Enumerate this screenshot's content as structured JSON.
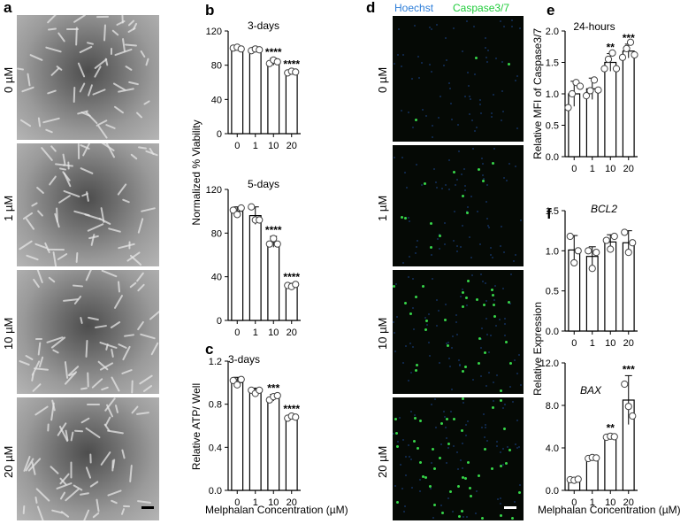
{
  "panels": {
    "a": {
      "letter": "a",
      "rows": [
        "0 µM",
        "1 µM",
        "10 µM",
        "20 µM"
      ]
    },
    "d": {
      "letter": "d",
      "channel1": "Hoechst",
      "channel2": "Caspase3/7",
      "rows": [
        "0 µM",
        "1 µM",
        "10 µM",
        "20 µM"
      ]
    }
  },
  "colors": {
    "hoechst": "#2f7fd9",
    "caspase": "#1fcc3a",
    "bar_fill": "#ffffff",
    "ink": "#000000"
  },
  "bottom_axis": {
    "left": "Melphalan  Concentration  (µM)",
    "right": "Melphalan  Concentration  (µM)"
  },
  "chart_data": [
    {
      "id": "b-top",
      "letter": "b",
      "type": "bar",
      "title": "3-days",
      "categories": [
        "0",
        "1",
        "10",
        "20"
      ],
      "values": [
        100,
        98,
        84,
        72
      ],
      "errors": [
        2,
        3,
        4,
        2
      ],
      "points": [
        [
          100,
          101,
          99
        ],
        [
          97,
          99,
          98
        ],
        [
          82,
          86,
          84
        ],
        [
          71,
          73,
          72
        ]
      ],
      "significance": [
        "",
        "",
        "****",
        "****"
      ],
      "ylim": [
        0,
        120
      ],
      "yticks": [
        "0",
        "40",
        "80",
        "120"
      ],
      "ylabel": "Normalized % Viability"
    },
    {
      "id": "b-bottom",
      "letter": "",
      "type": "bar",
      "title": "5-days",
      "categories": [
        "0",
        "1",
        "10",
        "20"
      ],
      "values": [
        100,
        96,
        72,
        32
      ],
      "errors": [
        4,
        8,
        5,
        2
      ],
      "points": [
        [
          101,
          97,
          103
        ],
        [
          104,
          92,
          92
        ],
        [
          70,
          75,
          70
        ],
        [
          32,
          31,
          33
        ]
      ],
      "significance": [
        "",
        "",
        "****",
        "****"
      ],
      "ylim": [
        0,
        120
      ],
      "yticks": [
        "0",
        "40",
        "80",
        "120"
      ],
      "ylabel": ""
    },
    {
      "id": "c",
      "letter": "c",
      "type": "bar",
      "title": "3-days",
      "categories": [
        "0",
        "1",
        "10",
        "20"
      ],
      "values": [
        1.0,
        0.92,
        0.86,
        0.68
      ],
      "errors": [
        0.05,
        0.03,
        0.03,
        0.02
      ],
      "points": [
        [
          1.02,
          0.98,
          1.03
        ],
        [
          0.93,
          0.9,
          0.93
        ],
        [
          0.84,
          0.87,
          0.88
        ],
        [
          0.67,
          0.69,
          0.68
        ]
      ],
      "significance": [
        "",
        "",
        "***",
        "****"
      ],
      "ylim": [
        0,
        1.2
      ],
      "yticks": [
        "0.0",
        "0.4",
        "0.8",
        "1.2"
      ],
      "ylabel": "Relative ATP/ Well"
    },
    {
      "id": "e",
      "letter": "e",
      "type": "bar",
      "title": "24-hours",
      "categories": [
        "0",
        "1",
        "10",
        "20"
      ],
      "values": [
        1.0,
        1.08,
        1.5,
        1.68
      ],
      "errors": [
        0.2,
        0.17,
        0.14,
        0.11
      ],
      "points": [
        [
          0.78,
          1.0,
          1.18,
          1.12
        ],
        [
          0.97,
          1.05,
          1.22,
          1.06
        ],
        [
          1.4,
          1.55,
          1.65,
          1.4
        ],
        [
          1.58,
          1.72,
          1.82,
          1.62
        ]
      ],
      "significance": [
        "",
        "",
        "**",
        "***"
      ],
      "ylim": [
        0,
        2.0
      ],
      "yticks": [
        "0.0",
        "0.5",
        "1.0",
        "1.5",
        "2.0"
      ],
      "ylabel": "Relative MFI of Caspase3/7"
    },
    {
      "id": "f-top",
      "letter": "f",
      "type": "bar",
      "title": "BCL2",
      "categories": [
        "0",
        "1",
        "10",
        "20"
      ],
      "values": [
        1.01,
        0.93,
        1.11,
        1.1
      ],
      "errors": [
        0.18,
        0.12,
        0.09,
        0.15
      ],
      "points": [
        [
          1.18,
          0.85,
          1.0
        ],
        [
          1.0,
          0.78,
          0.98
        ],
        [
          1.13,
          1.02,
          1.18
        ],
        [
          1.23,
          0.98,
          1.1
        ]
      ],
      "significance": [
        "",
        "",
        "",
        ""
      ],
      "ylim": [
        0,
        1.5
      ],
      "yticks": [
        "0.0",
        "0.5",
        "1.0",
        "1.5"
      ],
      "ylabel": "Relative Expression"
    },
    {
      "id": "f-bottom",
      "letter": "",
      "type": "bar",
      "title": "BAX",
      "categories": [
        "0",
        "1",
        "10",
        "20"
      ],
      "values": [
        1.0,
        3.05,
        5.05,
        8.5
      ],
      "errors": [
        0.15,
        0.2,
        0.25,
        2.3
      ],
      "points": [
        [
          1.0,
          0.95,
          1.05
        ],
        [
          3.0,
          3.1,
          3.05
        ],
        [
          5.0,
          5.1,
          5.05
        ],
        [
          10.0,
          7.9,
          7.0
        ]
      ],
      "significance": [
        "",
        "",
        "**",
        "***"
      ],
      "ylim": [
        0,
        12.0
      ],
      "yticks": [
        "0.0",
        "4.0",
        "8.0",
        "12.0"
      ],
      "ylabel": ""
    }
  ]
}
